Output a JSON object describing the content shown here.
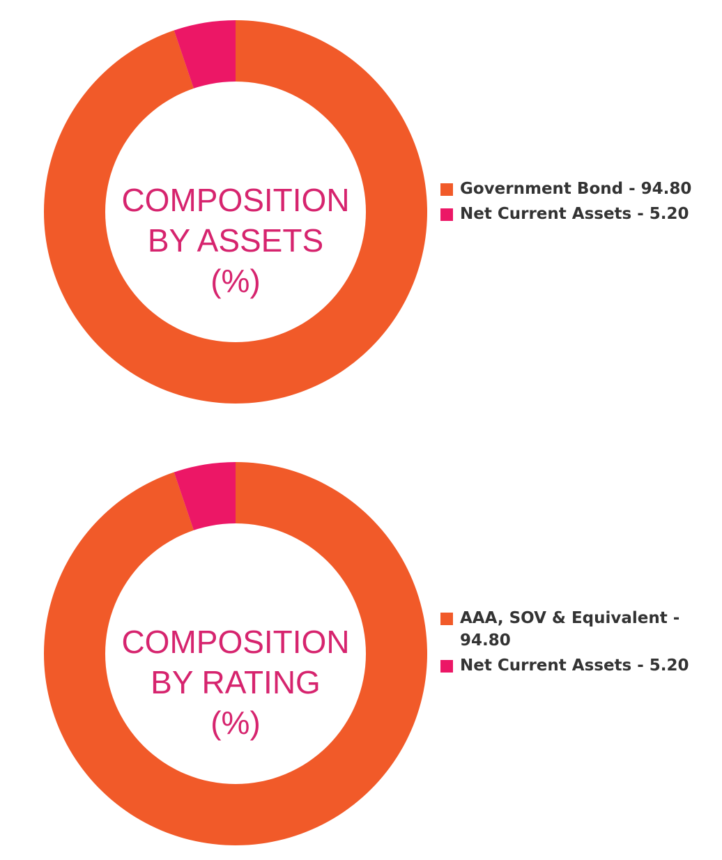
{
  "colors": {
    "primary": "#f15a29",
    "secondary": "#ec1766",
    "label": "#d6246e",
    "legend_text": "#333333"
  },
  "chart_data": [
    {
      "type": "pie",
      "title": "COMPOSITION BY ASSETS (%)",
      "title_lines": [
        "COMPOSITION",
        "BY ASSETS",
        "(%)"
      ],
      "legend_position": "right",
      "slices": [
        {
          "label": "Government Bond - 94.80",
          "name": "Government Bond",
          "value": 94.8,
          "color": "#f15a29"
        },
        {
          "label": "Net Current Assets - 5.20",
          "name": "Net Current Assets",
          "value": 5.2,
          "color": "#ec1766"
        }
      ]
    },
    {
      "type": "pie",
      "title": "COMPOSITION BY RATING (%)",
      "title_lines": [
        "COMPOSITION",
        "BY RATING",
        "(%)"
      ],
      "legend_position": "right",
      "slices": [
        {
          "label": "AAA, SOV & Equivalent - 94.80",
          "name": "AAA, SOV & Equivalent",
          "value": 94.8,
          "color": "#f15a29"
        },
        {
          "label": "Net Current Assets - 5.20",
          "name": "Net Current Assets",
          "value": 5.2,
          "color": "#ec1766"
        }
      ]
    }
  ]
}
